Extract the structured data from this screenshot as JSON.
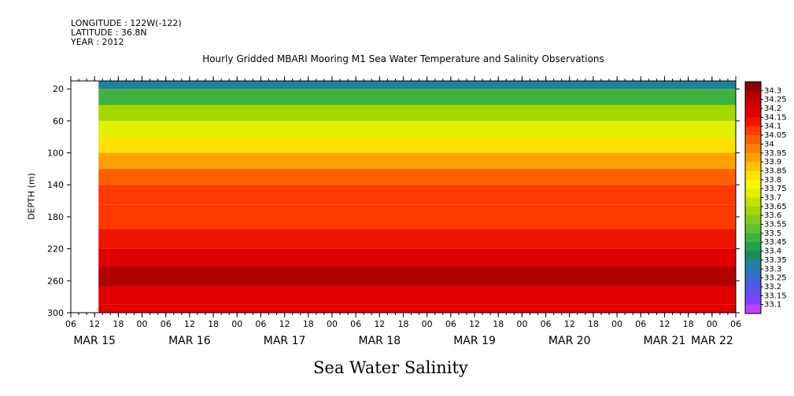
{
  "meta": {
    "longitude": "LONGITUDE : 122W(-122)",
    "latitude": "LATITUDE : 36.8N",
    "year": "YEAR : 2012"
  },
  "chart_data": {
    "type": "heatmap",
    "title": "Hourly Gridded MBARI Mooring M1 Sea Water Temperature and Salinity Observations",
    "xlabel": "Sea Water Salinity",
    "ylabel": "DEPTH (m)",
    "ylim": [
      300,
      10
    ],
    "y_ticks": [
      "20",
      "60",
      "100",
      "140",
      "180",
      "220",
      "260",
      "300"
    ],
    "x_hour_ticks": [
      "06",
      "12",
      "18",
      "00",
      "06",
      "12",
      "18",
      "00",
      "06",
      "12",
      "18",
      "00",
      "06",
      "12",
      "18",
      "00",
      "06",
      "12",
      "18",
      "00",
      "06",
      "12",
      "18",
      "00",
      "06",
      "12",
      "18",
      "00",
      "06"
    ],
    "x_date_labels": [
      "MAR 15",
      "MAR 16",
      "MAR 17",
      "MAR 18",
      "MAR 19",
      "MAR 20",
      "MAR 21",
      "MAR 22"
    ],
    "x_range_hours_from_mar15": [
      6,
      174
    ],
    "data_start_hour_from_mar15": 13,
    "colorbar": {
      "labels": [
        "34.3",
        "34.25",
        "34.2",
        "34.15",
        "34.1",
        "34.05",
        "34",
        "33.95",
        "33.9",
        "33.85",
        "33.8",
        "33.75",
        "33.7",
        "33.65",
        "33.6",
        "33.55",
        "33.5",
        "33.45",
        "33.4",
        "33.35",
        "33.3",
        "33.25",
        "33.2",
        "33.15",
        "33.1"
      ],
      "colors": [
        "#8b0000",
        "#b20000",
        "#cc0000",
        "#e00000",
        "#f01500",
        "#ff3a00",
        "#ff6000",
        "#ff8000",
        "#ffa000",
        "#ffc000",
        "#ffe000",
        "#f8f800",
        "#e0f000",
        "#c0e400",
        "#a0d800",
        "#80cc20",
        "#60c030",
        "#40b040",
        "#20a050",
        "#208860",
        "#2080a0",
        "#3070c0",
        "#4060e0",
        "#6050f0",
        "#8040ff",
        "#c040ff"
      ]
    },
    "depth_profile": [
      {
        "depth": 10,
        "value": 33.34
      },
      {
        "depth": 30,
        "value": 33.48
      },
      {
        "depth": 50,
        "value": 33.62
      },
      {
        "depth": 70,
        "value": 33.74
      },
      {
        "depth": 90,
        "value": 33.84
      },
      {
        "depth": 110,
        "value": 33.93
      },
      {
        "depth": 130,
        "value": 34.0
      },
      {
        "depth": 150,
        "value": 34.05
      },
      {
        "depth": 180,
        "value": 34.08
      },
      {
        "depth": 210,
        "value": 34.13
      },
      {
        "depth": 230,
        "value": 34.18
      },
      {
        "depth": 255,
        "value": 34.25
      },
      {
        "depth": 280,
        "value": 34.18
      },
      {
        "depth": 300,
        "value": 34.16
      }
    ]
  }
}
